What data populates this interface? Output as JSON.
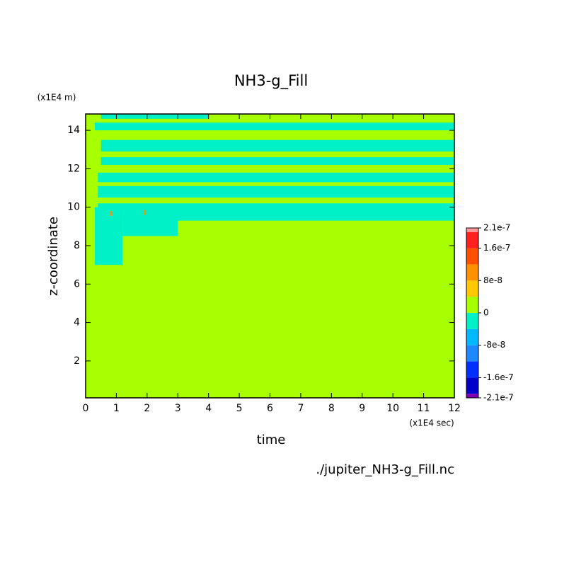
{
  "chart_data": {
    "type": "contour",
    "title": "NH3-g_Fill",
    "x_label": "time",
    "y_label": "z-coordinate",
    "x_scale_label": "(x1E4 sec)",
    "y_scale_label": "(x1E4 m)",
    "footnote": "./jupiter_NH3-g_Fill.nc",
    "xlim": [
      0,
      12
    ],
    "ylim": [
      0.08,
      14.85
    ],
    "xticks": [
      0,
      1,
      2,
      3,
      4,
      5,
      6,
      7,
      8,
      9,
      10,
      11,
      12
    ],
    "yticks": [
      2,
      4,
      6,
      8,
      10,
      12,
      14
    ],
    "levels": [
      -2.1e-07,
      -2e-07,
      -1.6e-07,
      -1.2e-07,
      -8e-08,
      -4e-08,
      0,
      4e-08,
      8e-08,
      1.2e-07,
      1.6e-07,
      2e-07,
      2.1e-07
    ],
    "colors": [
      "#8000b0",
      "#0000c8",
      "#0030ff",
      "#1e88ff",
      "#00b8ff",
      "#00f0c8",
      "#a8ff00",
      "#ffc800",
      "#ff9000",
      "#ff5000",
      "#ff2020",
      "#ff9898"
    ],
    "colorbar_ticks": [
      2.1e-07,
      1.6e-07,
      8e-08,
      0,
      -8e-08,
      -1.6e-07,
      -2.1e-07
    ],
    "field": [
      {
        "x": [
          0,
          12
        ],
        "z": [
          0.08,
          14.85
        ],
        "value": 2e-08
      },
      {
        "x": [
          0.5,
          4
        ],
        "z": [
          14.6,
          14.85
        ],
        "value": -2e-08
      },
      {
        "x": [
          0.3,
          12
        ],
        "z": [
          14.0,
          14.4
        ],
        "value": -2e-08
      },
      {
        "x": [
          0.5,
          12
        ],
        "z": [
          12.9,
          13.5
        ],
        "value": -2e-08
      },
      {
        "x": [
          0.5,
          12
        ],
        "z": [
          12.2,
          12.6
        ],
        "value": -2e-08
      },
      {
        "x": [
          0.4,
          12
        ],
        "z": [
          11.3,
          11.8
        ],
        "value": -2e-08
      },
      {
        "x": [
          0.4,
          12
        ],
        "z": [
          10.5,
          11.1
        ],
        "value": -2e-08
      },
      {
        "x": [
          0.4,
          12
        ],
        "z": [
          9.5,
          10.2
        ],
        "value": -2e-08
      },
      {
        "x": [
          0.3,
          1.2
        ],
        "z": [
          7,
          10
        ],
        "value": -2e-08
      },
      {
        "x": [
          1.2,
          3
        ],
        "z": [
          8.5,
          10
        ],
        "value": -2e-08
      },
      {
        "x": [
          3,
          12
        ],
        "z": [
          9.3,
          9.8
        ],
        "value": -2e-08
      },
      {
        "x": [
          0.8,
          0.86
        ],
        "z": [
          9.55,
          9.8
        ],
        "value": 1e-07
      },
      {
        "x": [
          1.9,
          1.96
        ],
        "z": [
          9.6,
          9.85
        ],
        "value": 1e-07
      }
    ]
  }
}
